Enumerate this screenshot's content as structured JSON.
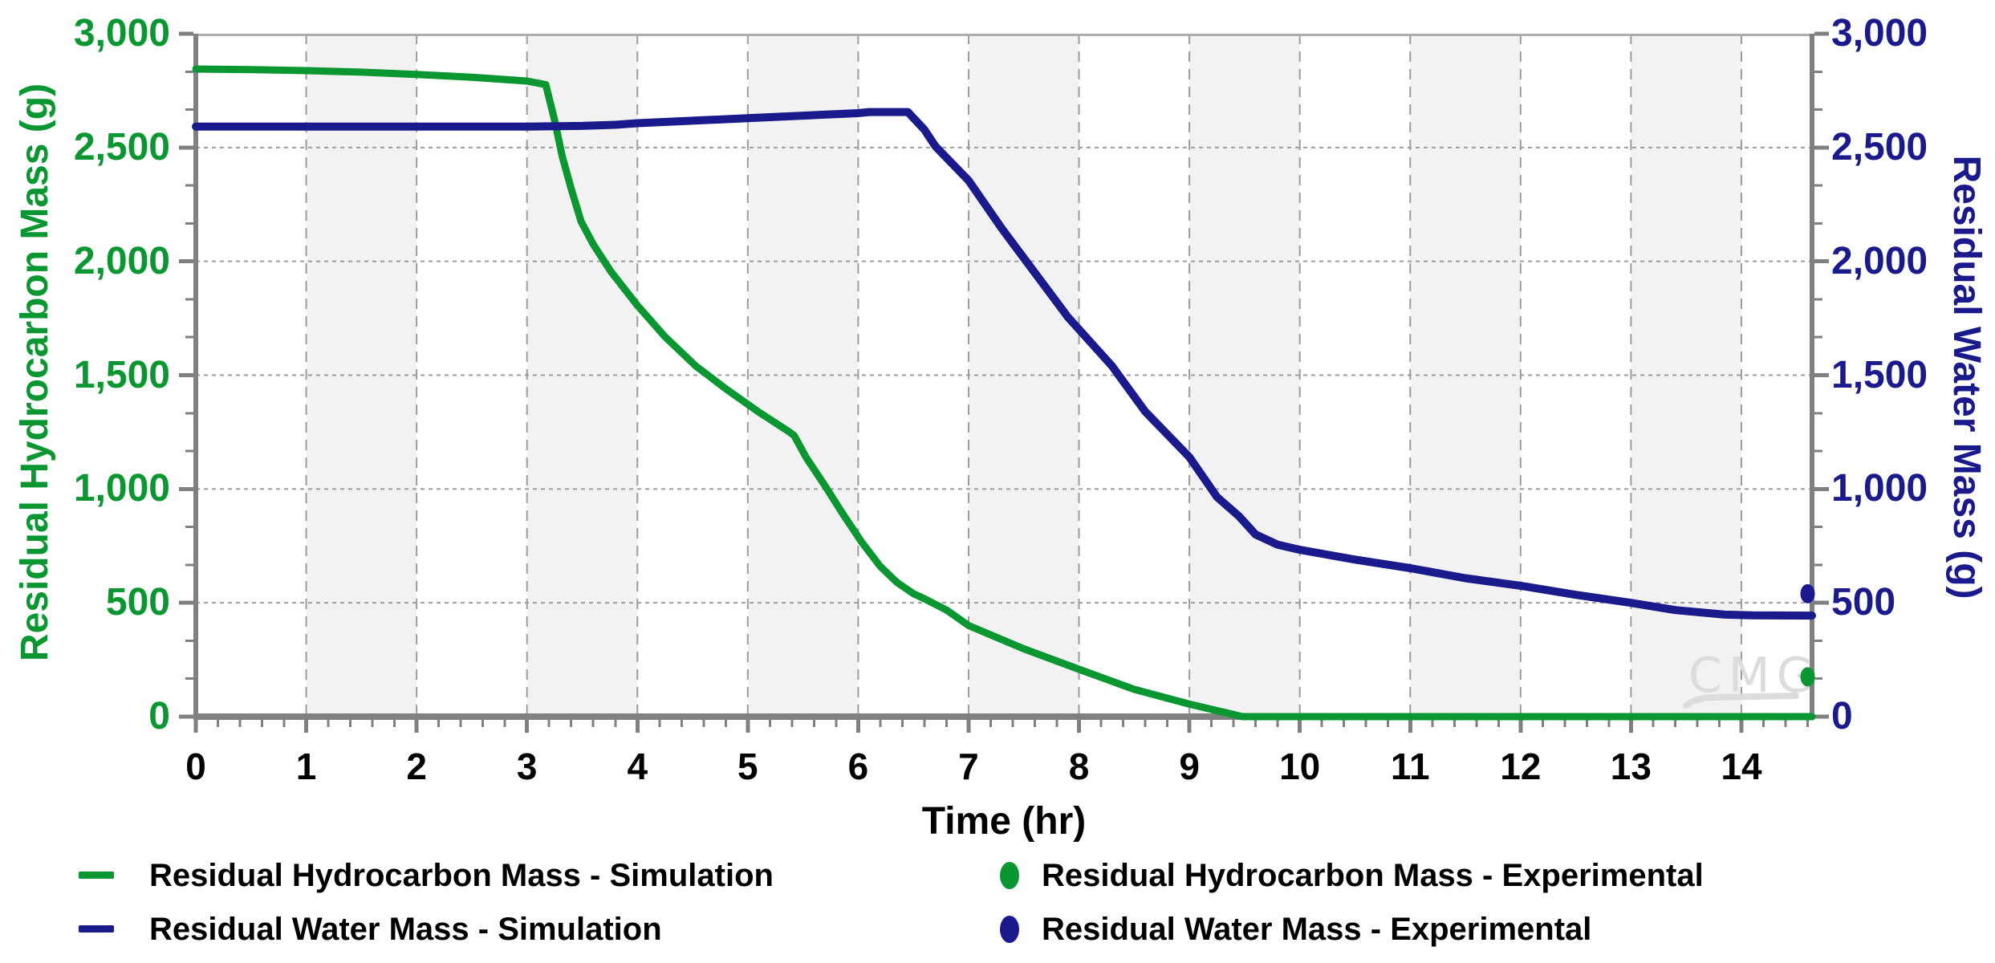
{
  "chart_data": {
    "type": "line",
    "title": "",
    "xlabel": "Time (hr)",
    "ylabel_left": "Residual Hydrocarbon Mass (g)",
    "ylabel_right": "Residual Water Mass (g)",
    "x_axis": {
      "min": 0,
      "max": 14.64,
      "minor_step": 0.2,
      "tick_values": [
        0,
        1,
        2,
        3,
        4,
        5,
        6,
        7,
        8,
        9,
        10,
        11,
        12,
        13,
        14
      ],
      "tick_labels": [
        "0",
        "1",
        "2",
        "3",
        "4",
        "5",
        "6",
        "7",
        "8",
        "9",
        "10",
        "11",
        "12",
        "13",
        "14"
      ]
    },
    "y_axis_left": {
      "min": 0,
      "max": 3000,
      "minor_step": 166.667,
      "tick_values": [
        0,
        500,
        1000,
        1500,
        2000,
        2500,
        3000
      ],
      "tick_labels": [
        "0",
        "500",
        "1,000",
        "1,500",
        "2,000",
        "2,500",
        "3,000"
      ]
    },
    "y_axis_right": {
      "min": 0,
      "max": 3000,
      "minor_step": 166.667,
      "tick_values": [
        0,
        500,
        1000,
        1500,
        2000,
        2500,
        3000
      ],
      "tick_labels": [
        "0",
        "500",
        "1,000",
        "1,500",
        "2,000",
        "2,500",
        "3,000"
      ]
    },
    "grid": {
      "x_values": [
        1,
        2,
        3,
        4,
        5,
        6,
        7,
        8,
        9,
        10,
        11,
        12,
        13,
        14
      ],
      "y_values": [
        500,
        1000,
        1500,
        2000,
        2500
      ]
    },
    "bands": [
      [
        1,
        2
      ],
      [
        3,
        4
      ],
      [
        5,
        6
      ],
      [
        7,
        8
      ],
      [
        9,
        10
      ],
      [
        11,
        12
      ],
      [
        13,
        14
      ]
    ],
    "series": [
      {
        "name": "Residual Hydrocarbon Mass - Simulation",
        "type": "line",
        "axis": "left",
        "color": "#0A9630",
        "stroke_width": 9,
        "points": [
          [
            0,
            2845
          ],
          [
            0.5,
            2842
          ],
          [
            1,
            2838
          ],
          [
            1.5,
            2831
          ],
          [
            2,
            2821
          ],
          [
            2.5,
            2809
          ],
          [
            3,
            2792
          ],
          [
            3.17,
            2776
          ],
          [
            3.25,
            2620
          ],
          [
            3.32,
            2460
          ],
          [
            3.4,
            2320
          ],
          [
            3.49,
            2175
          ],
          [
            3.6,
            2075
          ],
          [
            3.76,
            1955
          ],
          [
            4,
            1806
          ],
          [
            4.25,
            1669
          ],
          [
            4.53,
            1540
          ],
          [
            4.81,
            1437
          ],
          [
            5.09,
            1341
          ],
          [
            5.37,
            1253
          ],
          [
            5.42,
            1235
          ],
          [
            5.53,
            1137
          ],
          [
            5.7,
            1014
          ],
          [
            5.86,
            891
          ],
          [
            6.03,
            768
          ],
          [
            6.2,
            660
          ],
          [
            6.35,
            590
          ],
          [
            6.5,
            540
          ],
          [
            6.6,
            518
          ],
          [
            6.8,
            468
          ],
          [
            7,
            400
          ],
          [
            7.5,
            298
          ],
          [
            8,
            208
          ],
          [
            8.5,
            120
          ],
          [
            9,
            55
          ],
          [
            9.48,
            0
          ],
          [
            10,
            0
          ],
          [
            10.5,
            0
          ],
          [
            11,
            0
          ],
          [
            11.5,
            0
          ],
          [
            12,
            0
          ],
          [
            12.5,
            0
          ],
          [
            13,
            0
          ],
          [
            13.5,
            0
          ],
          [
            14,
            0
          ],
          [
            14.64,
            0
          ]
        ]
      },
      {
        "name": "Residual Water Mass - Simulation",
        "type": "line",
        "axis": "right",
        "color": "#1A1A8C",
        "stroke_width": 10,
        "points": [
          [
            0,
            2592
          ],
          [
            0.5,
            2592
          ],
          [
            1,
            2592
          ],
          [
            1.5,
            2592
          ],
          [
            2,
            2592
          ],
          [
            2.5,
            2592
          ],
          [
            3,
            2592
          ],
          [
            3.5,
            2595
          ],
          [
            3.8,
            2600
          ],
          [
            4,
            2607
          ],
          [
            4.5,
            2618
          ],
          [
            5,
            2629
          ],
          [
            5.5,
            2640
          ],
          [
            6,
            2651
          ],
          [
            6.1,
            2656
          ],
          [
            6.45,
            2656
          ],
          [
            6.6,
            2578
          ],
          [
            6.7,
            2505
          ],
          [
            7,
            2355
          ],
          [
            7.3,
            2145
          ],
          [
            7.6,
            1950
          ],
          [
            7.9,
            1755
          ],
          [
            8.3,
            1540
          ],
          [
            8.6,
            1340
          ],
          [
            9,
            1140
          ],
          [
            9.25,
            965
          ],
          [
            9.45,
            880
          ],
          [
            9.6,
            800
          ],
          [
            9.8,
            755
          ],
          [
            10,
            733
          ],
          [
            10.5,
            690
          ],
          [
            11,
            652
          ],
          [
            11.5,
            608
          ],
          [
            12,
            575
          ],
          [
            12.5,
            535
          ],
          [
            13,
            500
          ],
          [
            13.4,
            468
          ],
          [
            13.85,
            448
          ],
          [
            14.1,
            445
          ],
          [
            14.64,
            444
          ]
        ]
      },
      {
        "name": "Residual Hydrocarbon Mass - Experimental",
        "type": "scatter",
        "axis": "left",
        "color": "#0A9630",
        "points": [
          [
            14.6,
            175
          ]
        ]
      },
      {
        "name": "Residual Water Mass - Experimental",
        "type": "scatter",
        "axis": "right",
        "color": "#1A1A8C",
        "points": [
          [
            14.6,
            540
          ]
        ]
      }
    ],
    "legend_position": "bottom",
    "watermark": "CMG"
  },
  "colors": {
    "hydrocarbon_accent": "#0A9630",
    "water_accent": "#1A1A8C",
    "axis_line": "#808080",
    "top_border": "#ADADAD",
    "gridline": "#9C9C9C",
    "band_fill": "#F2F2F2",
    "x_label": "#000000",
    "watermark_gray": "#DCDCDC"
  }
}
